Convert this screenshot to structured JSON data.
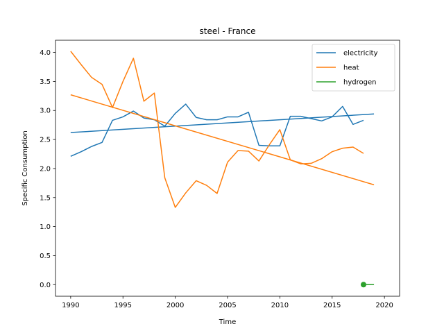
{
  "chart_data": {
    "type": "line",
    "title": "steel - France",
    "xlabel": "Time",
    "ylabel": "Specific Consumption",
    "xlim": [
      1988.55,
      2021.45
    ],
    "ylim": [
      -0.2,
      4.21
    ],
    "xticks": [
      1990,
      1995,
      2000,
      2005,
      2010,
      2015,
      2020
    ],
    "yticks": [
      0.0,
      0.5,
      1.0,
      1.5,
      2.0,
      2.5,
      3.0,
      3.5,
      4.0
    ],
    "ytick_labels": [
      "0.0",
      "0.5",
      "1.0",
      "1.5",
      "2.0",
      "2.5",
      "3.0",
      "3.5",
      "4.0"
    ],
    "grid": false,
    "legend_position": "top-right",
    "colors": {
      "electricity": "#1f77b4",
      "heat": "#ff7f0e",
      "hydrogen": "#2ca02c"
    },
    "series": [
      {
        "name": "electricity",
        "x": [
          1990,
          1991,
          1992,
          1993,
          1994,
          1995,
          1996,
          1997,
          1998,
          1999,
          2000,
          2001,
          2002,
          2003,
          2004,
          2005,
          2006,
          2007,
          2008,
          2009,
          2010,
          2011,
          2012,
          2013,
          2014,
          2015,
          2016,
          2017,
          2018
        ],
        "values": [
          2.21,
          2.29,
          2.38,
          2.45,
          2.83,
          2.89,
          2.99,
          2.87,
          2.84,
          2.73,
          2.95,
          3.11,
          2.88,
          2.84,
          2.84,
          2.89,
          2.89,
          2.97,
          2.4,
          2.39,
          2.39,
          2.9,
          2.9,
          2.86,
          2.82,
          2.89,
          3.07,
          2.76,
          2.83
        ],
        "trend": {
          "x": [
            1990,
            2019
          ],
          "values": [
            2.62,
            2.94
          ]
        }
      },
      {
        "name": "heat",
        "x": [
          1990,
          1991,
          1992,
          1993,
          1994,
          1995,
          1996,
          1997,
          1998,
          1999,
          2000,
          2001,
          2002,
          2003,
          2004,
          2005,
          2006,
          2007,
          2008,
          2009,
          2010,
          2011,
          2012,
          2013,
          2014,
          2015,
          2016,
          2017,
          2018
        ],
        "values": [
          4.02,
          3.79,
          3.57,
          3.45,
          3.05,
          3.5,
          3.9,
          3.16,
          3.3,
          1.84,
          1.33,
          1.58,
          1.79,
          1.71,
          1.57,
          2.11,
          2.31,
          2.3,
          2.13,
          2.41,
          2.67,
          2.15,
          2.08,
          2.09,
          2.17,
          2.29,
          2.35,
          2.37,
          2.26
        ],
        "trend": {
          "x": [
            1990,
            2019
          ],
          "values": [
            3.27,
            1.72
          ]
        }
      },
      {
        "name": "hydrogen",
        "x": [
          2018
        ],
        "values": [
          0.0
        ],
        "trend": {
          "x": [
            2018,
            2019
          ],
          "values": [
            0.0,
            0.0
          ]
        }
      }
    ]
  }
}
